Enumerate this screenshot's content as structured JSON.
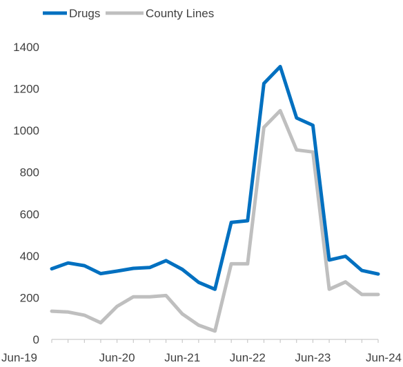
{
  "chart_data": {
    "type": "line",
    "title": "",
    "xlabel": "",
    "ylabel": "",
    "x": [
      "Jun-19",
      "Sep-19",
      "Dec-19",
      "Mar-20",
      "Jun-20",
      "Sep-20",
      "Dec-20",
      "Mar-21",
      "Jun-21",
      "Sep-21",
      "Dec-21",
      "Mar-22",
      "Jun-22",
      "Sep-22",
      "Dec-22",
      "Mar-23",
      "Jun-23",
      "Sep-23",
      "Dec-23",
      "Mar-24",
      "Jun-24"
    ],
    "x_tick_labels": [
      "Jun-19",
      "Jun-20",
      "Jun-21",
      "Jun-22",
      "Jun-23",
      "Jun-24"
    ],
    "ylim": [
      0,
      1400
    ],
    "y_ticks": [
      0,
      200,
      400,
      600,
      800,
      1000,
      1200,
      1400
    ],
    "grid": false,
    "legend_position": "top-left",
    "series": [
      {
        "name": "Drugs",
        "color": "#0070c0",
        "values": [
          338,
          366,
          353,
          315,
          327,
          340,
          344,
          377,
          335,
          273,
          240,
          560,
          568,
          1225,
          1306,
          1060,
          1025,
          380,
          398,
          330,
          313
        ]
      },
      {
        "name": "County Lines",
        "color": "#bfbfbf",
        "values": [
          135,
          131,
          116,
          80,
          158,
          204,
          204,
          210,
          122,
          68,
          40,
          362,
          362,
          1015,
          1095,
          907,
          897,
          240,
          275,
          215,
          215
        ]
      }
    ]
  }
}
